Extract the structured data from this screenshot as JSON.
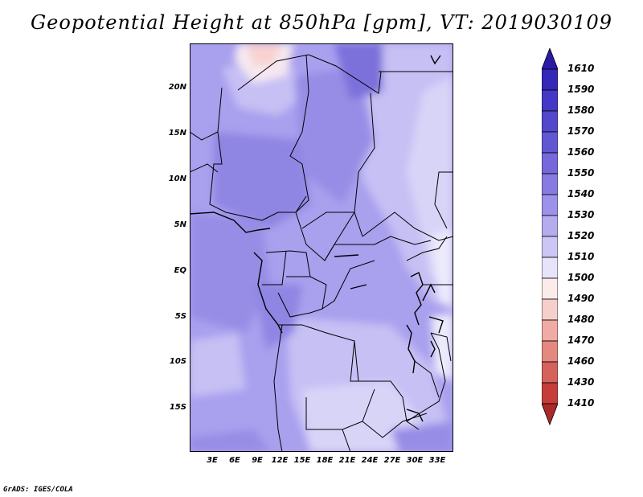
{
  "title": "Geopotential Height at 850hPa [gpm], VT: 2019030109",
  "footer": "GrADS: IGES/COLA",
  "map": {
    "lat_labels": [
      "20N",
      "15N",
      "10N",
      "5N",
      "EQ",
      "5S",
      "10S",
      "15S"
    ],
    "lon_labels": [
      "3E",
      "6E",
      "9E",
      "12E",
      "15E",
      "18E",
      "21E",
      "24E",
      "27E",
      "30E",
      "33E"
    ]
  },
  "colorbar": {
    "levels": [
      "1610",
      "1590",
      "1580",
      "1570",
      "1560",
      "1550",
      "1540",
      "1530",
      "1520",
      "1510",
      "1500",
      "1490",
      "1480",
      "1470",
      "1460",
      "1430",
      "1410"
    ],
    "colors": [
      "#2a1aa6",
      "#3527b8",
      "#4438c4",
      "#5347cc",
      "#6257d3",
      "#7468db",
      "#877be2",
      "#9c92e9",
      "#b4acef",
      "#ccc6f5",
      "#e6e3fa",
      "#fbeceb",
      "#f6cfcb",
      "#efaba4",
      "#e48880",
      "#d6625c",
      "#c63e3a",
      "#aa2a27"
    ]
  }
}
